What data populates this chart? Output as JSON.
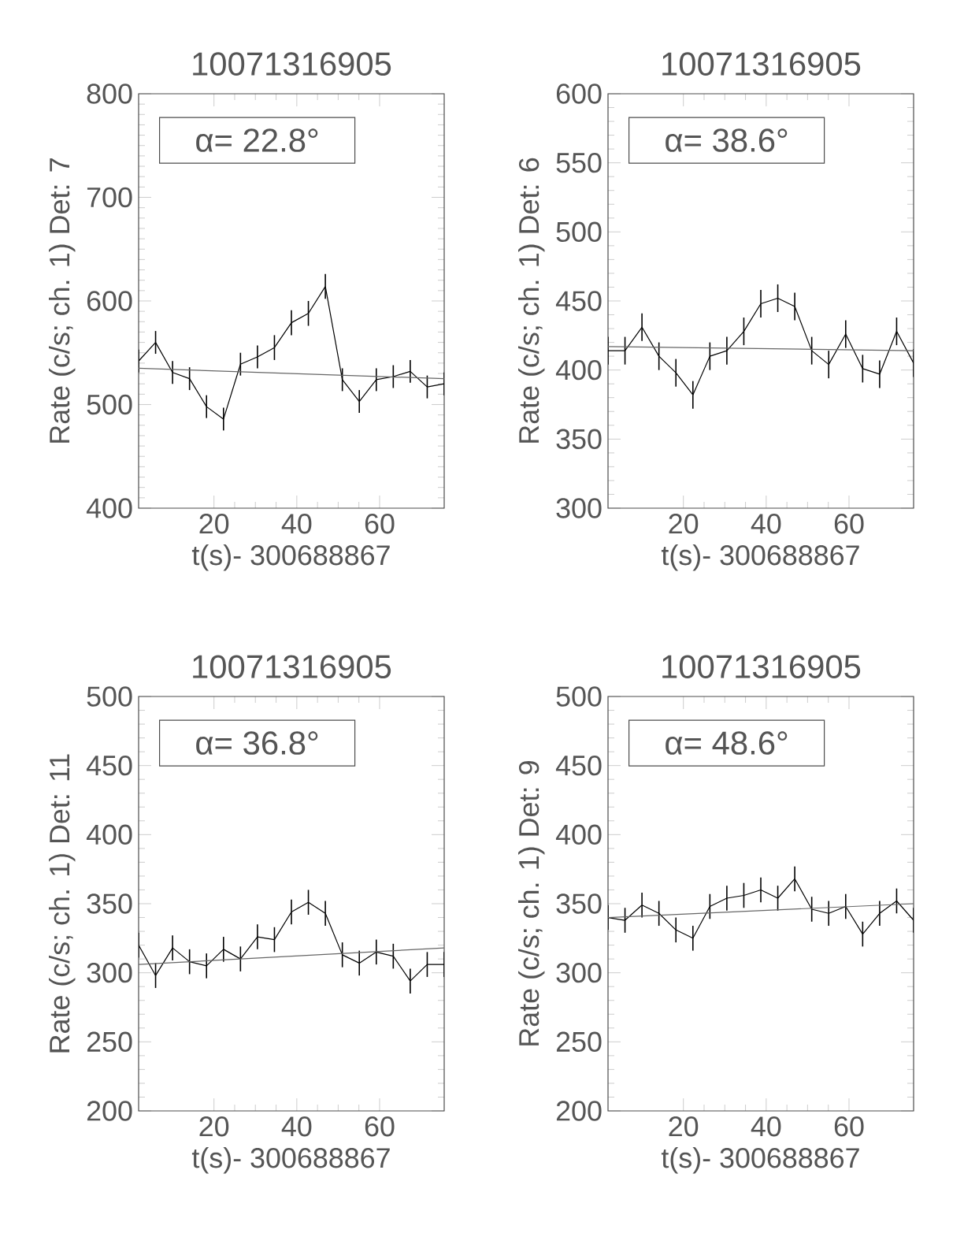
{
  "chart_data": [
    {
      "type": "line",
      "title": "10071316905",
      "xlabel": "t(s)- 300688867",
      "ylabel": "Rate (c/s; ch. 1) Det: 7",
      "annotations": [
        "α= 22.8°"
      ],
      "xlim": [
        1.8,
        75.6
      ],
      "xticks": [
        20,
        40,
        60
      ],
      "ylim": [
        400,
        800
      ],
      "yticks": [
        400,
        500,
        600,
        700,
        800
      ],
      "series": [
        {
          "color": "#000000",
          "x": [
            1.8,
            5.9,
            10.0,
            14.1,
            18.2,
            22.3,
            26.4,
            30.5,
            34.6,
            38.7,
            42.8,
            46.9,
            51.0,
            55.1,
            59.2,
            63.3,
            67.4,
            71.5,
            75.6
          ],
          "values": [
            542,
            560,
            531,
            525,
            498,
            486,
            539,
            546,
            555,
            579,
            588,
            614,
            524,
            503,
            524,
            527,
            532,
            517,
            520
          ],
          "errors": [
            11,
            11,
            11,
            11,
            11,
            11,
            11,
            11,
            12,
            12,
            12,
            12,
            11,
            11,
            11,
            11,
            11,
            11,
            11
          ]
        },
        {
          "type": "line",
          "color": "#666666",
          "x": [
            1.8,
            75.6
          ],
          "values": [
            535,
            525
          ]
        }
      ]
    },
    {
      "type": "line",
      "title": "10071316905",
      "xlabel": "t(s)- 300688867",
      "ylabel": "Rate (c/s; ch. 1) Det: 6",
      "annotations": [
        "α= 38.6°"
      ],
      "xlim": [
        1.8,
        75.6
      ],
      "xticks": [
        20,
        40,
        60
      ],
      "ylim": [
        300,
        600
      ],
      "yticks": [
        300,
        350,
        400,
        450,
        500,
        550,
        600
      ],
      "series": [
        {
          "color": "#000000",
          "x": [
            1.8,
            5.9,
            10.0,
            14.1,
            18.2,
            22.3,
            26.4,
            30.5,
            34.6,
            38.7,
            42.8,
            46.9,
            51.0,
            55.1,
            59.2,
            63.3,
            67.4,
            71.5,
            75.6
          ],
          "values": [
            414,
            414,
            431,
            410,
            398,
            382,
            410,
            414,
            428,
            448,
            452,
            446,
            414,
            404,
            426,
            401,
            397,
            428,
            405
          ],
          "errors": [
            10,
            10,
            10,
            10,
            10,
            10,
            10,
            10,
            10,
            10,
            10,
            10,
            10,
            10,
            10,
            10,
            10,
            10,
            10
          ]
        },
        {
          "type": "line",
          "color": "#666666",
          "x": [
            1.8,
            75.6
          ],
          "values": [
            417,
            414
          ]
        }
      ]
    },
    {
      "type": "line",
      "title": "10071316905",
      "xlabel": "t(s)- 300688867",
      "ylabel": "Rate (c/s; ch. 1) Det: 11",
      "annotations": [
        "α= 36.8°"
      ],
      "xlim": [
        1.8,
        75.6
      ],
      "xticks": [
        20,
        40,
        60
      ],
      "ylim": [
        200,
        500
      ],
      "yticks": [
        200,
        250,
        300,
        350,
        400,
        450,
        500
      ],
      "series": [
        {
          "color": "#000000",
          "x": [
            1.8,
            5.9,
            10.0,
            14.1,
            18.2,
            22.3,
            26.4,
            30.5,
            34.6,
            38.7,
            42.8,
            46.9,
            51.0,
            55.1,
            59.2,
            63.3,
            67.4,
            71.5,
            75.6
          ],
          "values": [
            320,
            298,
            318,
            308,
            305,
            317,
            310,
            326,
            324,
            344,
            351,
            343,
            313,
            307,
            315,
            312,
            294,
            306,
            306
          ],
          "errors": [
            9,
            9,
            9,
            9,
            9,
            9,
            9,
            9,
            9,
            9,
            9,
            9,
            9,
            9,
            9,
            9,
            9,
            9,
            9
          ]
        },
        {
          "type": "line",
          "color": "#666666",
          "x": [
            1.8,
            75.6
          ],
          "values": [
            306,
            318
          ]
        }
      ]
    },
    {
      "type": "line",
      "title": "10071316905",
      "xlabel": "t(s)- 300688867",
      "ylabel": "Rate (c/s; ch. 1) Det: 9",
      "annotations": [
        "α= 48.6°"
      ],
      "xlim": [
        1.8,
        75.6
      ],
      "xticks": [
        20,
        40,
        60
      ],
      "ylim": [
        200,
        500
      ],
      "yticks": [
        200,
        250,
        300,
        350,
        400,
        450,
        500
      ],
      "series": [
        {
          "color": "#000000",
          "x": [
            1.8,
            5.9,
            10.0,
            14.1,
            18.2,
            22.3,
            26.4,
            30.5,
            34.6,
            38.7,
            42.8,
            46.9,
            51.0,
            55.1,
            59.2,
            63.3,
            67.4,
            71.5,
            75.6
          ],
          "values": [
            340,
            338,
            349,
            343,
            331,
            325,
            348,
            354,
            356,
            360,
            354,
            368,
            346,
            343,
            348,
            328,
            343,
            352,
            338
          ],
          "errors": [
            9,
            9,
            9,
            9,
            9,
            9,
            9,
            9,
            9,
            9,
            9,
            9,
            9,
            9,
            9,
            9,
            9,
            9,
            9
          ]
        },
        {
          "type": "line",
          "color": "#666666",
          "x": [
            1.8,
            75.6
          ],
          "values": [
            340,
            350
          ]
        }
      ]
    }
  ]
}
